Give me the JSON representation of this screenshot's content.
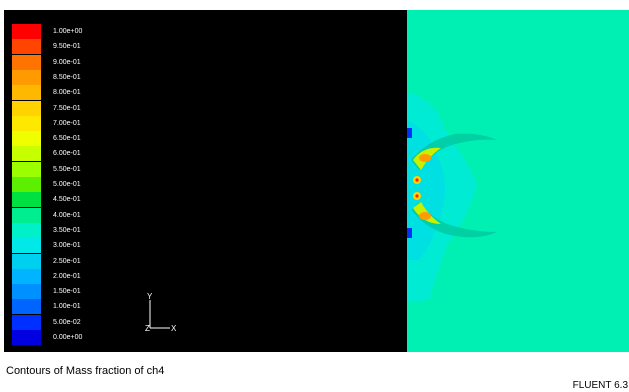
{
  "legend": {
    "labels": [
      "1.00e+00",
      "9.50e-01",
      "9.00e-01",
      "8.50e-01",
      "8.00e-01",
      "7.50e-01",
      "7.00e-01",
      "6.50e-01",
      "6.00e-01",
      "5.50e-01",
      "5.00e-01",
      "4.50e-01",
      "4.00e-01",
      "3.50e-01",
      "3.00e-01",
      "2.50e-01",
      "2.00e-01",
      "1.50e-01",
      "1.00e-01",
      "5.00e-02",
      "0.00e+00"
    ],
    "colors": [
      "#ff0000",
      "#ff4500",
      "#ff7400",
      "#ff9a00",
      "#ffb800",
      "#ffd200",
      "#ffe800",
      "#f0ff00",
      "#c8ff00",
      "#9cff00",
      "#5cf000",
      "#00e040",
      "#00ee90",
      "#00f0c8",
      "#00e8e8",
      "#00d0f0",
      "#00b4ff",
      "#0090ff",
      "#0064ff",
      "#0030ff",
      "#0000e0"
    ]
  },
  "field": {
    "background_color": "#00f0b4"
  },
  "axes": {
    "y_label": "Y",
    "z_label": "Z",
    "x_label": "X"
  },
  "footer": {
    "caption": "Contours of Mass fraction of ch4",
    "version": "FLUENT 6.3"
  }
}
